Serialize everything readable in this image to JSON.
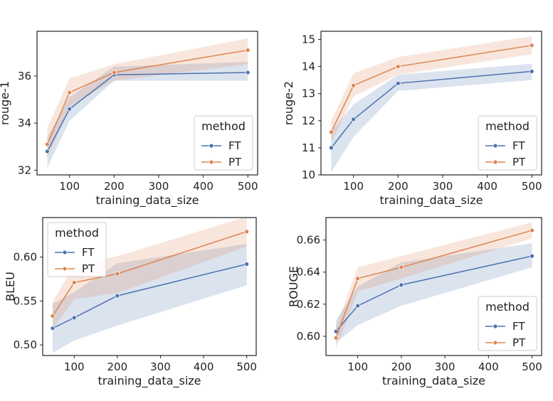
{
  "colors": {
    "FT": "#4c72b0",
    "PT": "#dd8452",
    "FT_band": "#4c72b0",
    "PT_band": "#dd8452",
    "frame": "#222222",
    "legend_border": "#cccccc"
  },
  "chart_data": [
    {
      "type": "line",
      "xlabel": "training_data_size",
      "ylabel": "rouge-1",
      "xlim": [
        27,
        522
      ],
      "ylim": [
        31.8,
        37.9
      ],
      "xticks": [
        100,
        200,
        300,
        400,
        500
      ],
      "yticks": [
        32,
        34,
        36
      ],
      "legend": {
        "title": "method",
        "position": "bottom-right"
      },
      "x": [
        50,
        100,
        200,
        500
      ],
      "series": [
        {
          "name": "FT",
          "values": [
            32.8,
            34.6,
            36.05,
            36.15
          ],
          "lower": [
            32.1,
            34.1,
            35.8,
            35.8
          ],
          "upper": [
            33.4,
            35.1,
            36.4,
            36.6
          ]
        },
        {
          "name": "PT",
          "values": [
            33.1,
            35.3,
            36.15,
            37.1
          ],
          "lower": [
            32.5,
            34.7,
            35.8,
            36.5
          ],
          "upper": [
            33.8,
            35.9,
            36.5,
            37.6
          ]
        }
      ]
    },
    {
      "type": "line",
      "xlabel": "training_data_size",
      "ylabel": "rouge-2",
      "xlim": [
        27,
        522
      ],
      "ylim": [
        10,
        15.3
      ],
      "xticks": [
        100,
        200,
        300,
        400,
        500
      ],
      "yticks": [
        10,
        11,
        12,
        13,
        14,
        15
      ],
      "legend": {
        "title": "method",
        "position": "bottom-right"
      },
      "x": [
        50,
        100,
        200,
        500
      ],
      "series": [
        {
          "name": "FT",
          "values": [
            11.0,
            12.05,
            13.38,
            13.82
          ],
          "lower": [
            10.1,
            11.4,
            13.1,
            13.5
          ],
          "upper": [
            11.6,
            12.6,
            13.7,
            14.1
          ]
        },
        {
          "name": "PT",
          "values": [
            11.58,
            13.3,
            14.0,
            14.78
          ],
          "lower": [
            11.2,
            12.9,
            13.7,
            14.45
          ],
          "upper": [
            12.0,
            13.75,
            14.35,
            15.12
          ]
        }
      ]
    },
    {
      "type": "line",
      "xlabel": "training_data_size",
      "ylabel": "BLEU",
      "xlim": [
        27,
        522
      ],
      "ylim": [
        0.488,
        0.645
      ],
      "xticks": [
        100,
        200,
        300,
        400,
        500
      ],
      "yticks": [
        0.5,
        0.55,
        0.6
      ],
      "yticklabels": [
        "0.50",
        "0.55",
        "0.60"
      ],
      "legend": {
        "title": "method",
        "position": "top-left"
      },
      "x": [
        50,
        100,
        200,
        500
      ],
      "series": [
        {
          "name": "FT",
          "values": [
            0.519,
            0.531,
            0.556,
            0.592
          ],
          "lower": [
            0.491,
            0.505,
            0.522,
            0.568
          ],
          "upper": [
            0.547,
            0.56,
            0.593,
            0.615
          ]
        },
        {
          "name": "PT",
          "values": [
            0.533,
            0.571,
            0.581,
            0.629
          ],
          "lower": [
            0.518,
            0.552,
            0.559,
            0.612
          ],
          "upper": [
            0.549,
            0.591,
            0.601,
            0.646
          ]
        }
      ]
    },
    {
      "type": "line",
      "xlabel": "training_data_size",
      "ylabel": "ROUGE",
      "xlim": [
        27,
        522
      ],
      "ylim": [
        0.588,
        0.674
      ],
      "xticks": [
        100,
        200,
        300,
        400,
        500
      ],
      "yticks": [
        0.6,
        0.62,
        0.64,
        0.66
      ],
      "yticklabels": [
        "0.60",
        "0.62",
        "0.64",
        "0.66"
      ],
      "legend": {
        "title": "method",
        "position": "bottom-right"
      },
      "x": [
        50,
        100,
        200,
        500
      ],
      "series": [
        {
          "name": "FT",
          "values": [
            0.603,
            0.619,
            0.632,
            0.65
          ],
          "lower": [
            0.596,
            0.607,
            0.619,
            0.643
          ],
          "upper": [
            0.61,
            0.631,
            0.646,
            0.658
          ]
        },
        {
          "name": "PT",
          "values": [
            0.599,
            0.636,
            0.643,
            0.666
          ],
          "lower": [
            0.592,
            0.628,
            0.636,
            0.661
          ],
          "upper": [
            0.606,
            0.643,
            0.65,
            0.671
          ]
        }
      ]
    }
  ]
}
